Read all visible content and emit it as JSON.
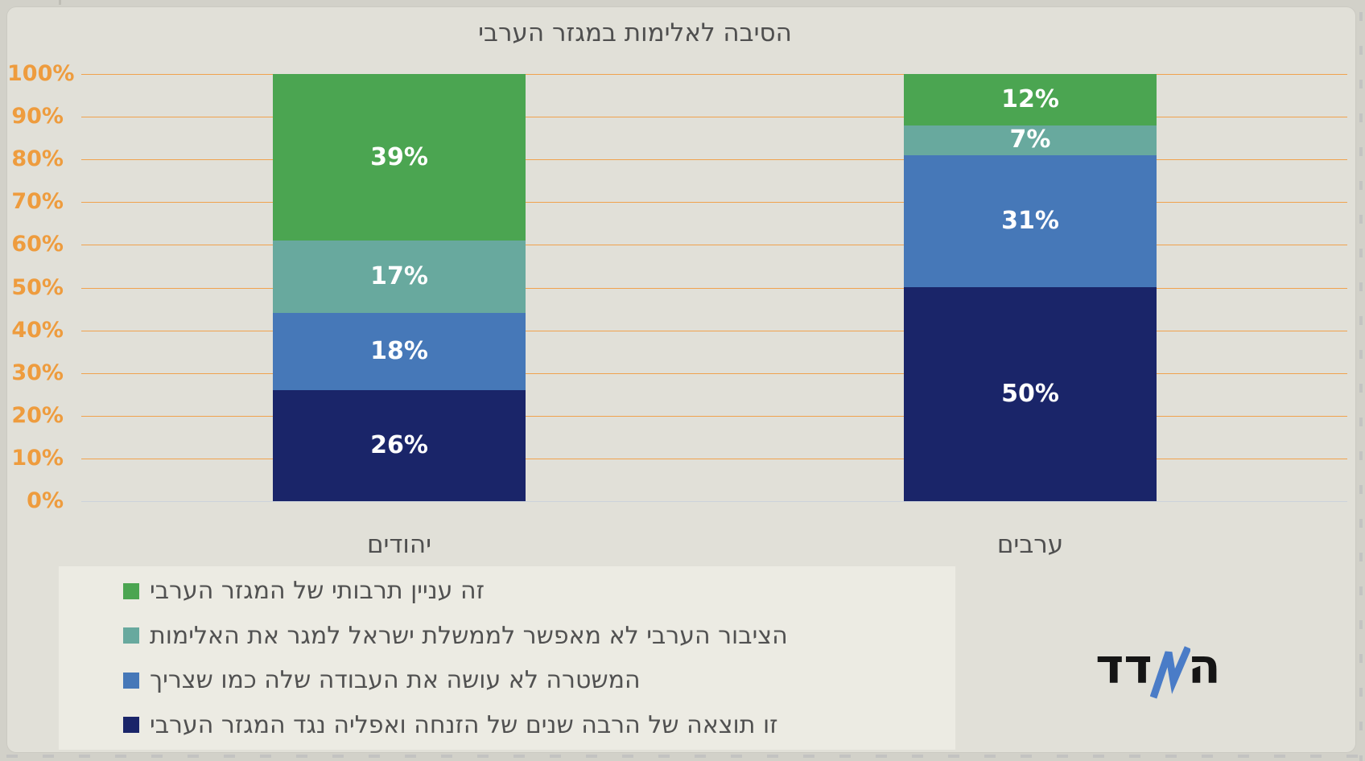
{
  "page": {
    "background": "#d2d1c9",
    "card_background": "#e1e0d8",
    "legend_background": "#ecebe3"
  },
  "chart_data": {
    "type": "bar",
    "stacked": true,
    "title": "הסיבה לאלימות במגזר הערבי",
    "categories": [
      "יהודים",
      "ערבים"
    ],
    "series": [
      {
        "name": "זה עניין תרבותי של המגזר הערבי",
        "color": "#4ba551",
        "values": [
          39,
          12
        ]
      },
      {
        "name": "הציבור הערבי לא מאפשר לממשלת ישראל למגר את האלימות",
        "color": "#68a99e",
        "values": [
          17,
          7
        ]
      },
      {
        "name": "המשטרה לא עושה את העבודה שלה כמו שצריך",
        "color": "#4678b8",
        "values": [
          18,
          31
        ]
      },
      {
        "name": "זו תוצאה של הרבה שנים של הזנחה ואפליה נגד המגזר הערבי",
        "color": "#1a2569",
        "values": [
          26,
          50
        ]
      }
    ],
    "value_suffix": "%",
    "y_axis": {
      "ticks": [
        "0%",
        "10%",
        "20%",
        "30%",
        "40%",
        "50%",
        "60%",
        "70%",
        "80%",
        "90%",
        "100%"
      ],
      "min": 0,
      "max": 100,
      "label_color": "#ee9c3e"
    },
    "gridline_color": "#f0a24e",
    "baseline_color": "#ccd2da",
    "grid": true,
    "legend_position": "bottom-left",
    "value_label_color": "#ffffff"
  },
  "logo": {
    "full_text": "המדד",
    "text_right": "ה",
    "text_left": "דד",
    "zigzag_color": "#4a7cc7"
  }
}
